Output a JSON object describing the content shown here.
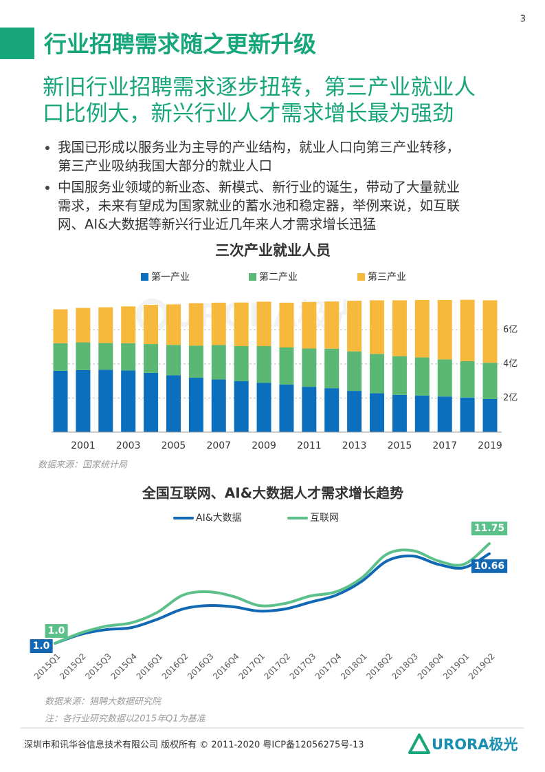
{
  "page_number": "3",
  "title": "行业招聘需求随之更新升级",
  "subtitle": [
    "新旧行业招聘需求逐步扭转，第三产业就业人",
    "口比例大，新兴行业人才需求增长最为强劲"
  ],
  "bullets": [
    [
      "我国已形成以服务业为主导的产业结构，就业人口向第三产业转移，",
      "第三产业吸纳我国大部分的就业人口"
    ],
    [
      "中国服务业领域的新业态、新模式、新行业的诞生，带动了大量就业",
      "需求，未来有望成为国家就业的蓄水池和稳定器，举例来说，如互联",
      "网、AI&大数据等新兴行业近几年来人才需求增长迅猛"
    ]
  ],
  "watermark": "URORA极光",
  "chart_data": [
    {
      "type": "bar",
      "stacked": true,
      "title": "三次产业就业人员",
      "categories": [
        null,
        "2001",
        null,
        "2003",
        null,
        "2005",
        null,
        "2007",
        null,
        "2009",
        null,
        "2011",
        null,
        "2013",
        null,
        "2015",
        null,
        "2017",
        null,
        "2019"
      ],
      "series": [
        {
          "name": "第一产业",
          "color": "#0b6fbd",
          "values": [
            3.6,
            3.64,
            3.66,
            3.62,
            3.48,
            3.34,
            3.19,
            3.09,
            2.99,
            2.89,
            2.79,
            2.66,
            2.58,
            2.42,
            2.28,
            2.19,
            2.15,
            2.09,
            2.03,
            1.94
          ]
        },
        {
          "name": "第二产业",
          "color": "#5bb874",
          "values": [
            1.62,
            1.63,
            1.57,
            1.6,
            1.69,
            1.78,
            1.89,
            2.02,
            2.06,
            2.16,
            2.18,
            2.25,
            2.32,
            2.32,
            2.31,
            2.27,
            2.24,
            2.18,
            2.14,
            2.13
          ]
        },
        {
          "name": "第三产业",
          "color": "#f6b93b",
          "values": [
            1.99,
            2.02,
            2.1,
            2.16,
            2.3,
            2.38,
            2.49,
            2.49,
            2.56,
            2.61,
            2.63,
            2.73,
            2.77,
            2.97,
            3.15,
            3.28,
            3.37,
            3.49,
            3.6,
            3.67
          ]
        }
      ],
      "ylim": [
        0,
        8
      ],
      "yticks": [
        {
          "value": 2,
          "label": "2亿"
        },
        {
          "value": 4,
          "label": "4亿"
        },
        {
          "value": 6,
          "label": "6亿"
        }
      ],
      "grid": true,
      "y_axis_side": "right",
      "source": "数据来源：国家统计局"
    },
    {
      "type": "line",
      "smooth": true,
      "title": "全国互联网、AI&大数据人才需求增长趋势",
      "categories": [
        "2015Q1",
        "2015Q2",
        "2015Q3",
        "2015Q4",
        "2016Q1",
        "2016Q2",
        "2016Q3",
        "2016Q4",
        "2017Q1",
        "2017Q2",
        "2017Q3",
        "2017Q4",
        "2018Q1",
        "2018Q2",
        "2018Q3",
        "2018Q4",
        "2019Q1",
        "2019Q2"
      ],
      "series": [
        {
          "name": "AI&大数据",
          "color": "#1268b3",
          "values": [
            1.0,
            1.96,
            2.48,
            2.7,
            3.59,
            4.7,
            5.07,
            4.93,
            4.48,
            4.7,
            5.44,
            6.19,
            7.67,
            9.89,
            10.41,
            9.52,
            9.15,
            10.66
          ],
          "value_labels": [
            "1.0",
            null,
            null,
            null,
            null,
            null,
            null,
            null,
            null,
            null,
            null,
            null,
            null,
            null,
            null,
            null,
            null,
            "10.66"
          ]
        },
        {
          "name": "互联网",
          "color": "#5cc08a",
          "values": [
            1.0,
            2.11,
            2.85,
            3.22,
            4.33,
            6.19,
            6.56,
            6.04,
            5.07,
            5.3,
            6.11,
            6.56,
            8.04,
            10.63,
            11.0,
            9.89,
            9.52,
            11.75
          ],
          "value_labels": [
            "1.0",
            null,
            null,
            null,
            null,
            null,
            null,
            null,
            null,
            null,
            null,
            null,
            null,
            null,
            null,
            null,
            null,
            "11.75"
          ]
        }
      ],
      "ylim": [
        0,
        12.5
      ],
      "source": "数据来源：猎聘大数据研究院",
      "note": "注：各行业研究数据以2015年Q1为基准"
    }
  ],
  "footer": {
    "copyright": "深圳市和讯华谷信息技术有限公司 版权所有 © 2011-2020 粤ICP备12056275号-13",
    "logo": "URORA极光"
  }
}
